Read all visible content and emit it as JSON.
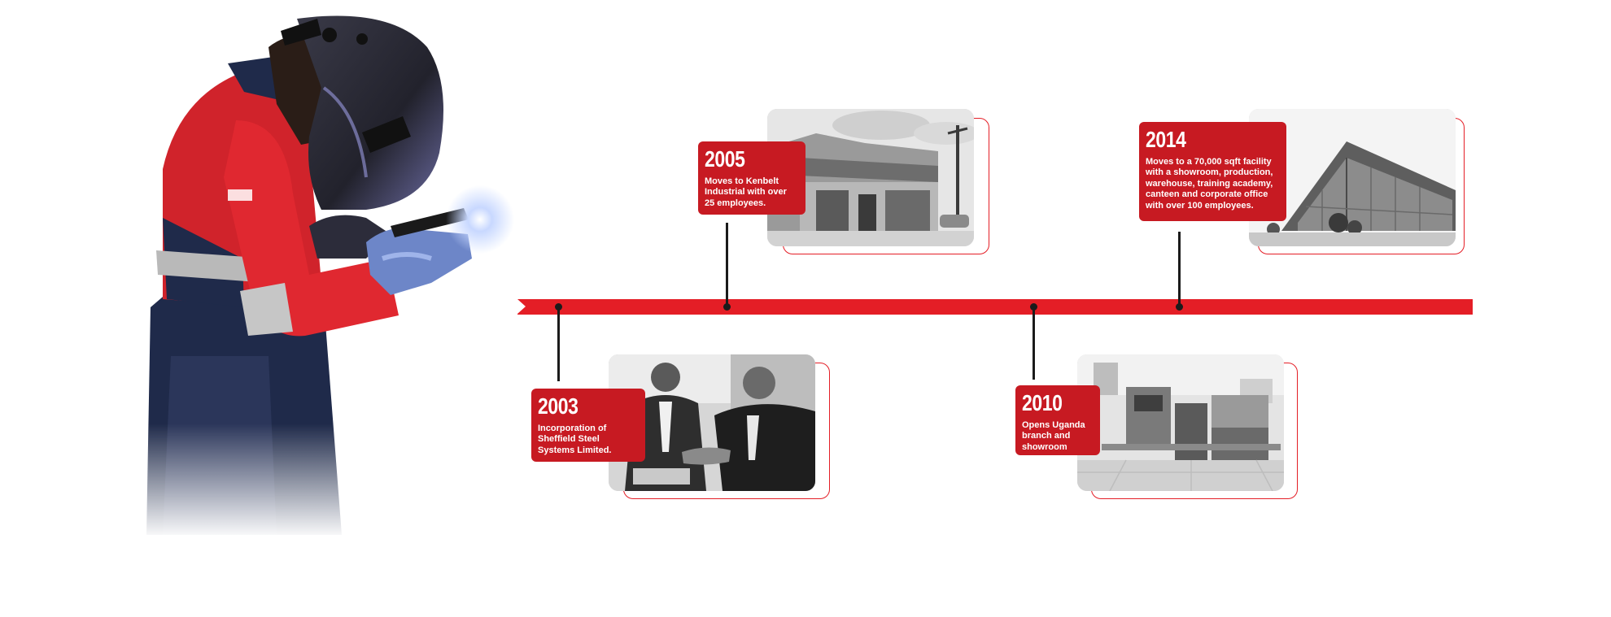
{
  "colors": {
    "accent": "#e41e26",
    "label_bg": "#c71a22",
    "stem": "#1b1b1b",
    "background": "#ffffff"
  },
  "hero": {
    "image": "welder-in-red-coverall-with-welding-helmet"
  },
  "timeline": {
    "milestones": [
      {
        "year": "2003",
        "description": "Incorporation of Sheffield Steel Systems Limited.",
        "photo": "two-men-shaking-hands-photo",
        "position": "below"
      },
      {
        "year": "2005",
        "description": "Moves to Kenbelt Industrial with over 25 employees.",
        "photo": "industrial-building-photo",
        "position": "above"
      },
      {
        "year": "2010",
        "description": "Opens Uganda branch and showroom",
        "photo": "showroom-interior-photo",
        "position": "below"
      },
      {
        "year": "2014",
        "description": "Moves to a 70,000 sqft facility with a showroom, production, warehouse, training academy, canteen and corporate office with over 100 employees.",
        "photo": "modern-glass-facility-photo",
        "position": "above"
      }
    ]
  }
}
